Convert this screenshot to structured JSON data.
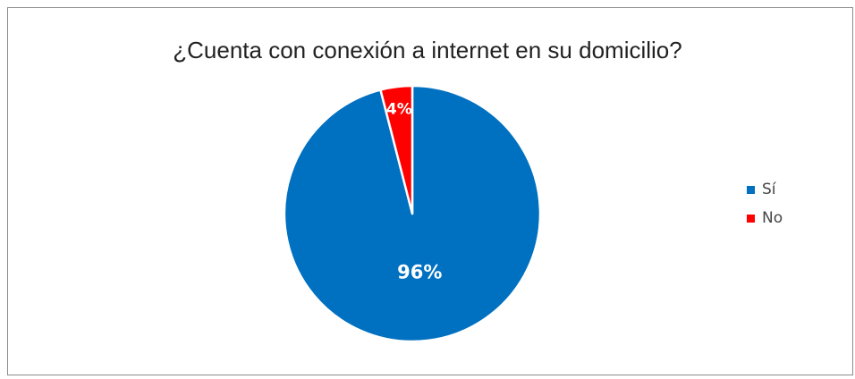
{
  "chart_data": {
    "type": "pie",
    "title": "¿Cuenta con conexión a internet en su domicilio?",
    "categories": [
      "Sí",
      "No"
    ],
    "values": [
      96,
      4
    ],
    "labels": [
      "96%",
      "4%"
    ],
    "colors": [
      "#0070C0",
      "#FF0000"
    ],
    "legend_position": "right"
  }
}
